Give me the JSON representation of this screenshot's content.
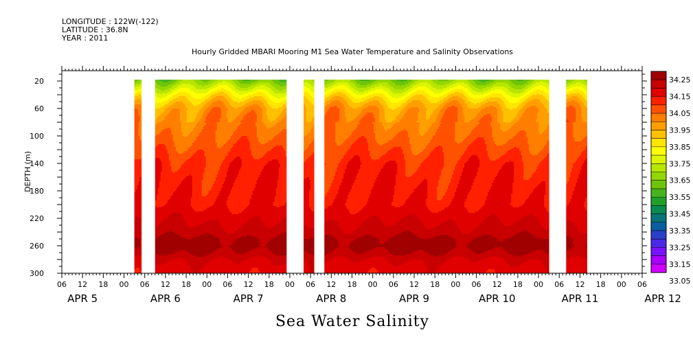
{
  "header": {
    "longitude": "LONGITUDE : 122W(-122)",
    "latitude": "LATITUDE : 36.8N",
    "year": "YEAR : 2011"
  },
  "chart_data": {
    "type": "heatmap",
    "title": "Hourly Gridded MBARI Mooring M1 Sea Water Temperature and Salinity Observations",
    "xlabel": "Sea Water Salinity",
    "ylabel": "DEPTH (m)",
    "y_range": [
      300,
      5
    ],
    "y_ticks": [
      20,
      60,
      100,
      140,
      180,
      220,
      260,
      300
    ],
    "x_range_hours": [
      0,
      168
    ],
    "x_hour_labels": [
      "06",
      "12",
      "18",
      "00",
      "06",
      "12",
      "18",
      "00",
      "06",
      "12",
      "18",
      "00",
      "06",
      "12",
      "18",
      "00",
      "06",
      "12",
      "18",
      "00",
      "06",
      "12",
      "18",
      "00",
      "06",
      "12",
      "18",
      "00",
      "06"
    ],
    "x_day_labels": [
      "APR  5",
      "APR  6",
      "APR  7",
      "APR  8",
      "APR  9",
      "APR 10",
      "APR 11",
      "APR 12"
    ],
    "data_segments_hours": [
      [
        21,
        23
      ],
      [
        27,
        65
      ],
      [
        70,
        73
      ],
      [
        76,
        141
      ],
      [
        146,
        152
      ]
    ],
    "salinity_profile": {
      "depth_m": [
        20,
        30,
        40,
        50,
        60,
        80,
        100,
        120,
        140,
        160,
        180,
        200,
        220,
        240,
        250,
        260,
        270,
        280,
        290,
        300
      ],
      "salinity": [
        33.62,
        33.72,
        33.82,
        33.9,
        33.96,
        34.0,
        34.03,
        34.07,
        34.11,
        34.12,
        34.13,
        34.14,
        34.18,
        34.22,
        34.26,
        34.27,
        34.24,
        34.19,
        34.17,
        34.16
      ]
    },
    "colorbar": {
      "labels": [
        "34.25",
        "34.15",
        "34.05",
        "33.95",
        "33.85",
        "33.75",
        "33.65",
        "33.55",
        "33.45",
        "33.35",
        "33.25",
        "33.15",
        "33.05"
      ],
      "colors": [
        "#a00000",
        "#c80000",
        "#e00000",
        "#ff2000",
        "#ff5200",
        "#ff7e00",
        "#ff9e00",
        "#ffc000",
        "#ffe600",
        "#ffff00",
        "#dcf500",
        "#b8e600",
        "#94d600",
        "#6ec40a",
        "#46b41e",
        "#20a02a",
        "#0a8a50",
        "#0a7478",
        "#0a5ea0",
        "#2a40c8",
        "#4a2ae6",
        "#7814ff",
        "#aa00ff",
        "#d200ff"
      ],
      "range": [
        33.0,
        34.3
      ]
    }
  }
}
